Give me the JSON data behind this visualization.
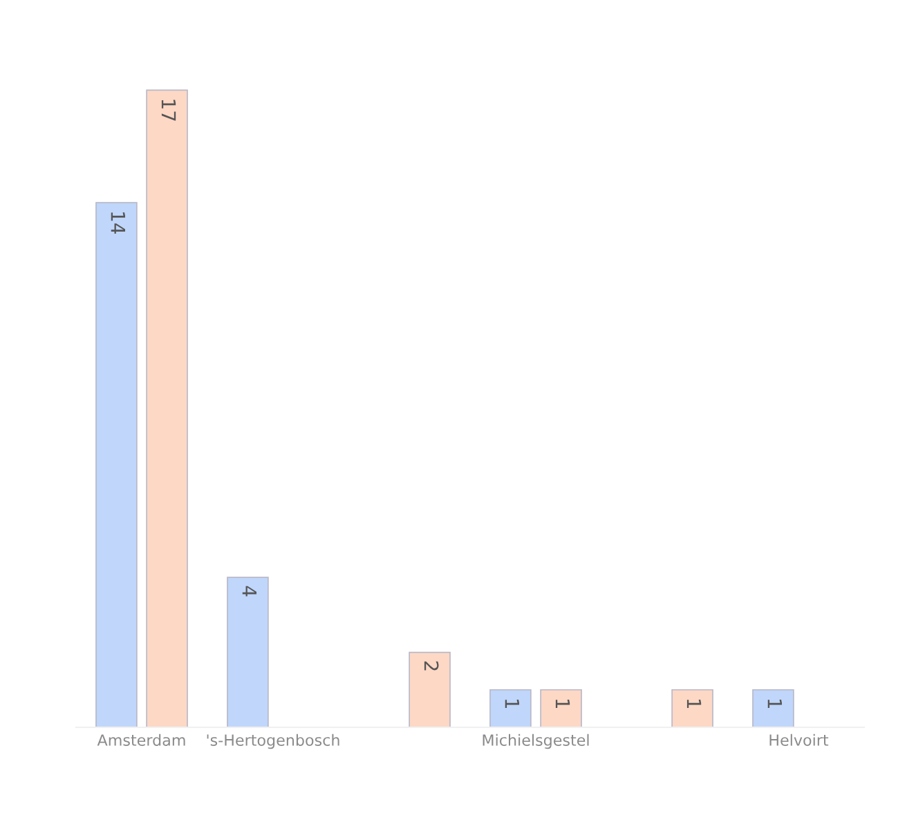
{
  "chart_data": {
    "type": "bar",
    "categories": [
      "Amsterdam",
      "'s-Hertogenbosch",
      null,
      "Michielsgestel",
      null,
      "Helvoirt"
    ],
    "series": [
      {
        "color": "#c0d6fb",
        "values": [
          14,
          4,
          null,
          1,
          null,
          1
        ]
      },
      {
        "color": "#fdd8c5",
        "values": [
          17,
          null,
          2,
          1,
          1,
          null
        ]
      }
    ],
    "data_labels": true,
    "grid": false,
    "legend": false
  }
}
